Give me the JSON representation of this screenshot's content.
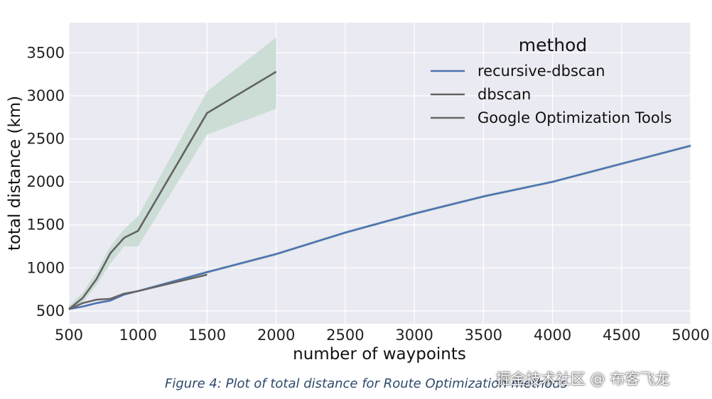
{
  "chart_data": {
    "type": "line",
    "title": "",
    "xlabel": "number of waypoints",
    "ylabel": "total distance (km)",
    "xlim": [
      500,
      5000
    ],
    "ylim": [
      350,
      3850
    ],
    "xticks": [
      500,
      1000,
      1500,
      2000,
      2500,
      3000,
      3500,
      4000,
      4500,
      5000
    ],
    "yticks": [
      500,
      1000,
      1500,
      2000,
      2500,
      3000,
      3500
    ],
    "grid": true,
    "legend": {
      "title": "method",
      "placement": "top-right"
    },
    "colors": {
      "plot_background": "#eaeaf2",
      "grid": "#ffffff",
      "band": "#c9dcd2"
    },
    "series": [
      {
        "name": "recursive-dbscan",
        "color": "#4c72b0",
        "x": [
          500,
          600,
          700,
          800,
          900,
          1000,
          1500,
          2000,
          2500,
          3000,
          3500,
          4000,
          4500,
          5000
        ],
        "y": [
          520,
          550,
          590,
          620,
          690,
          730,
          950,
          1160,
          1410,
          1630,
          1830,
          2000,
          2210,
          2420
        ],
        "band_lower": [
          510,
          540,
          580,
          610,
          680,
          720,
          930,
          1140,
          1390,
          1610,
          1810,
          1980,
          2190,
          2400
        ],
        "band_upper": [
          530,
          560,
          600,
          630,
          700,
          740,
          970,
          1180,
          1430,
          1650,
          1850,
          2020,
          2230,
          2440
        ]
      },
      {
        "name": "dbscan",
        "color": "#636363",
        "x": [
          500,
          600,
          700,
          800,
          900,
          1000,
          1500,
          2000
        ],
        "y": [
          520,
          650,
          870,
          1170,
          1350,
          1430,
          2800,
          3280
        ],
        "band_lower": [
          500,
          600,
          800,
          1050,
          1250,
          1250,
          2550,
          2850
        ],
        "band_upper": [
          560,
          710,
          950,
          1250,
          1450,
          1600,
          3050,
          3680
        ]
      },
      {
        "name": "Google Optimization Tools",
        "color": "#666666",
        "x": [
          500,
          600,
          700,
          800,
          900,
          1000,
          1500
        ],
        "y": [
          520,
          590,
          630,
          640,
          700,
          730,
          920
        ]
      }
    ]
  },
  "caption": "Figure 4: Plot of total distance for Route Optimization methods",
  "watermark": "掘金技术社区 @ 布客飞龙"
}
